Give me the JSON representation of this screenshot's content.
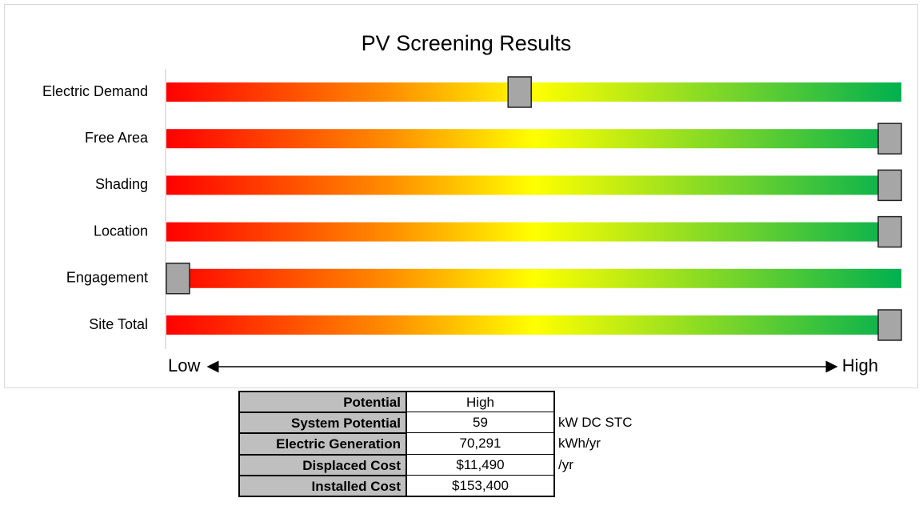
{
  "chart_data": {
    "type": "slider",
    "title": "PV Screening Results",
    "categories": [
      "Electric Demand",
      "Free Area",
      "Shading",
      "Location",
      "Engagement",
      "Site Total"
    ],
    "values": [
      48,
      100,
      100,
      100,
      0,
      100
    ],
    "xlim": [
      0,
      100
    ],
    "xticks": [
      {
        "value": 0,
        "label": "Low"
      },
      {
        "value": 100,
        "label": "High"
      }
    ],
    "colors": [
      "#ff0000",
      "#ff8c00",
      "#ffff00",
      "#00b050"
    ],
    "marker_color": "#a6a6a6"
  },
  "table": {
    "rows": [
      {
        "label": "Potential",
        "value": "High"
      },
      {
        "label": "System Potential",
        "value": "59",
        "unit": "kW DC STC"
      },
      {
        "label": "Electric Generation",
        "value": "70,291",
        "unit": "kWh/yr"
      },
      {
        "label": "Displaced Cost",
        "value": "$11,490",
        "unit": "/yr"
      },
      {
        "label": "Installed Cost",
        "value": "$153,400"
      }
    ]
  }
}
